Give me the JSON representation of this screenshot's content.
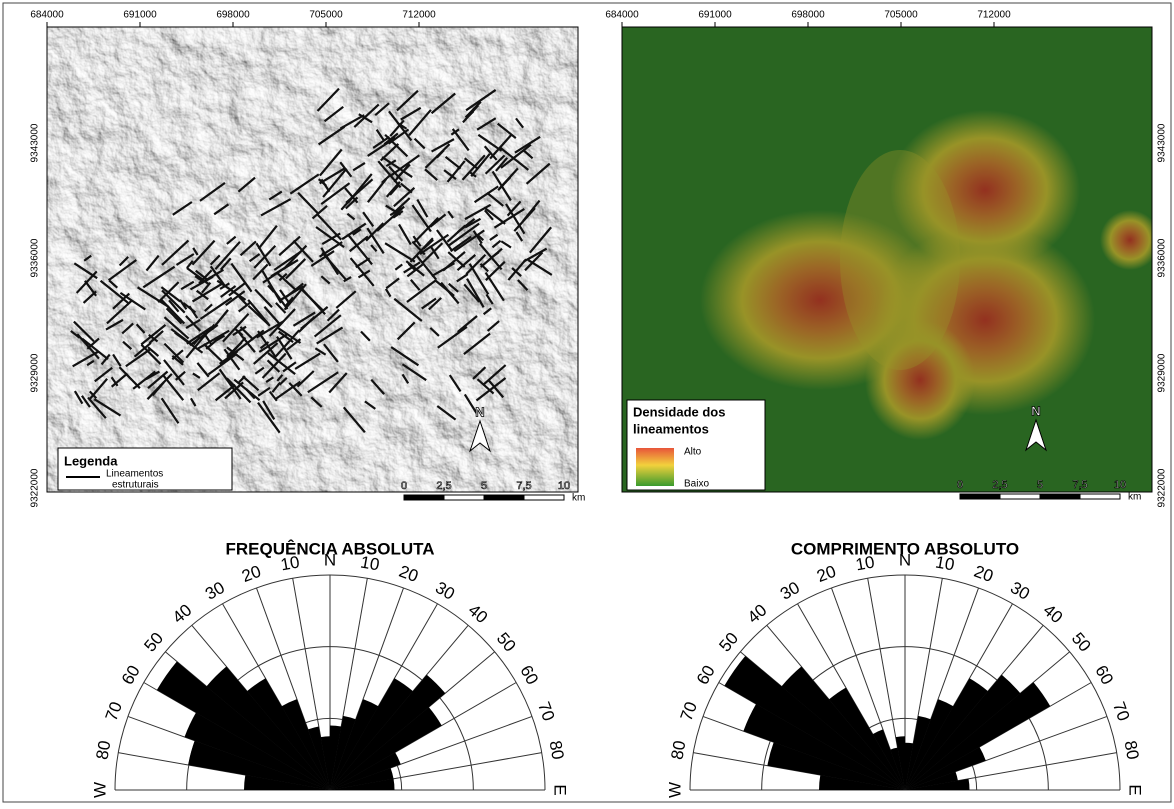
{
  "maps": [
    {
      "x_labels": [
        "684000",
        "691000",
        "698000",
        "705000",
        "712000"
      ],
      "y_labels": [
        "9343000",
        "9336000",
        "9329000",
        "9322000"
      ],
      "legend": {
        "title": "Legenda",
        "lines": [
          "Lineamentos",
          "estruturais"
        ]
      },
      "north": "N",
      "scale_labels": [
        "0",
        "2,5",
        "5",
        "7,5",
        "10"
      ],
      "scale_unit": "km"
    },
    {
      "x_labels": [
        "684000",
        "691000",
        "698000",
        "705000",
        "712000"
      ],
      "y_labels": [
        "9343000",
        "9336000",
        "9329000",
        "9322000"
      ],
      "legend": {
        "lines": [
          "Densidade dos",
          "lineamentos"
        ],
        "high": "Alto",
        "low": "Baixo"
      },
      "north": "N",
      "scale_labels": [
        "0",
        "2,5",
        "5",
        "7,5",
        "10"
      ],
      "scale_unit": "km"
    }
  ],
  "roses": [
    {
      "title": "FREQUÊNCIA ABSOLUTA",
      "direction_labels": [
        "W",
        "80",
        "70",
        "60",
        "50",
        "40",
        "30",
        "20",
        "10",
        "N",
        "10",
        "20",
        "30",
        "40",
        "50",
        "60",
        "70",
        "80",
        "E"
      ],
      "values": [
        40,
        67,
        72,
        93,
        75,
        60,
        45,
        30,
        25,
        30,
        35,
        45,
        60,
        70,
        60,
        35,
        30,
        30
      ]
    },
    {
      "title": "COMPRIMENTO ABSOLUTO",
      "direction_labels": [
        "W",
        "80",
        "70",
        "60",
        "50",
        "40",
        "30",
        "20",
        "10",
        "N",
        "10",
        "20",
        "30",
        "40",
        "50",
        "60",
        "70",
        "80",
        "E"
      ],
      "values": [
        40,
        65,
        80,
        97,
        75,
        55,
        30,
        20,
        25,
        22,
        35,
        45,
        60,
        70,
        78,
        40,
        25,
        30
      ]
    }
  ]
}
